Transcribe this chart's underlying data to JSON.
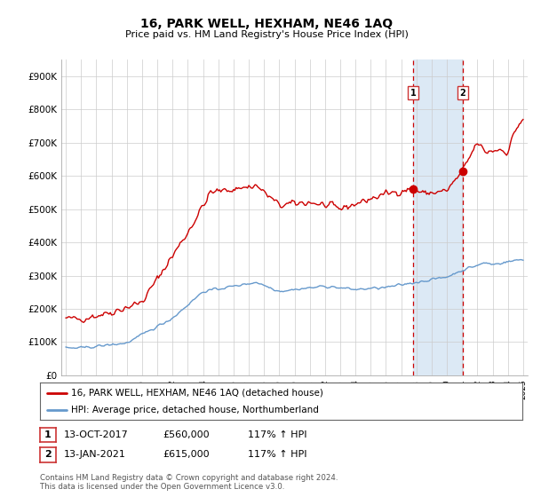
{
  "title": "16, PARK WELL, HEXHAM, NE46 1AQ",
  "subtitle": "Price paid vs. HM Land Registry's House Price Index (HPI)",
  "ylabel_ticks": [
    "£0",
    "£100K",
    "£200K",
    "£300K",
    "£400K",
    "£500K",
    "£600K",
    "£700K",
    "£800K",
    "£900K"
  ],
  "ylim": [
    0,
    950000
  ],
  "xlim_start": 1994.7,
  "xlim_end": 2025.3,
  "sale1_x": 2017.79,
  "sale1_y": 560000,
  "sale1_label": "1",
  "sale2_x": 2021.04,
  "sale2_y": 615000,
  "sale2_label": "2",
  "red_line_color": "#cc0000",
  "blue_line_color": "#6699cc",
  "highlight_box_color": "#dce9f5",
  "dashed_line_color": "#cc0000",
  "legend_red_label": "16, PARK WELL, HEXHAM, NE46 1AQ (detached house)",
  "legend_blue_label": "HPI: Average price, detached house, Northumberland",
  "table_row1": [
    "1",
    "13-OCT-2017",
    "£560,000",
    "117% ↑ HPI"
  ],
  "table_row2": [
    "2",
    "13-JAN-2021",
    "£615,000",
    "117% ↑ HPI"
  ],
  "footnote1": "Contains HM Land Registry data © Crown copyright and database right 2024.",
  "footnote2": "This data is licensed under the Open Government Licence v3.0.",
  "background_color": "#ffffff",
  "plot_bg_color": "#ffffff",
  "grid_color": "#cccccc"
}
